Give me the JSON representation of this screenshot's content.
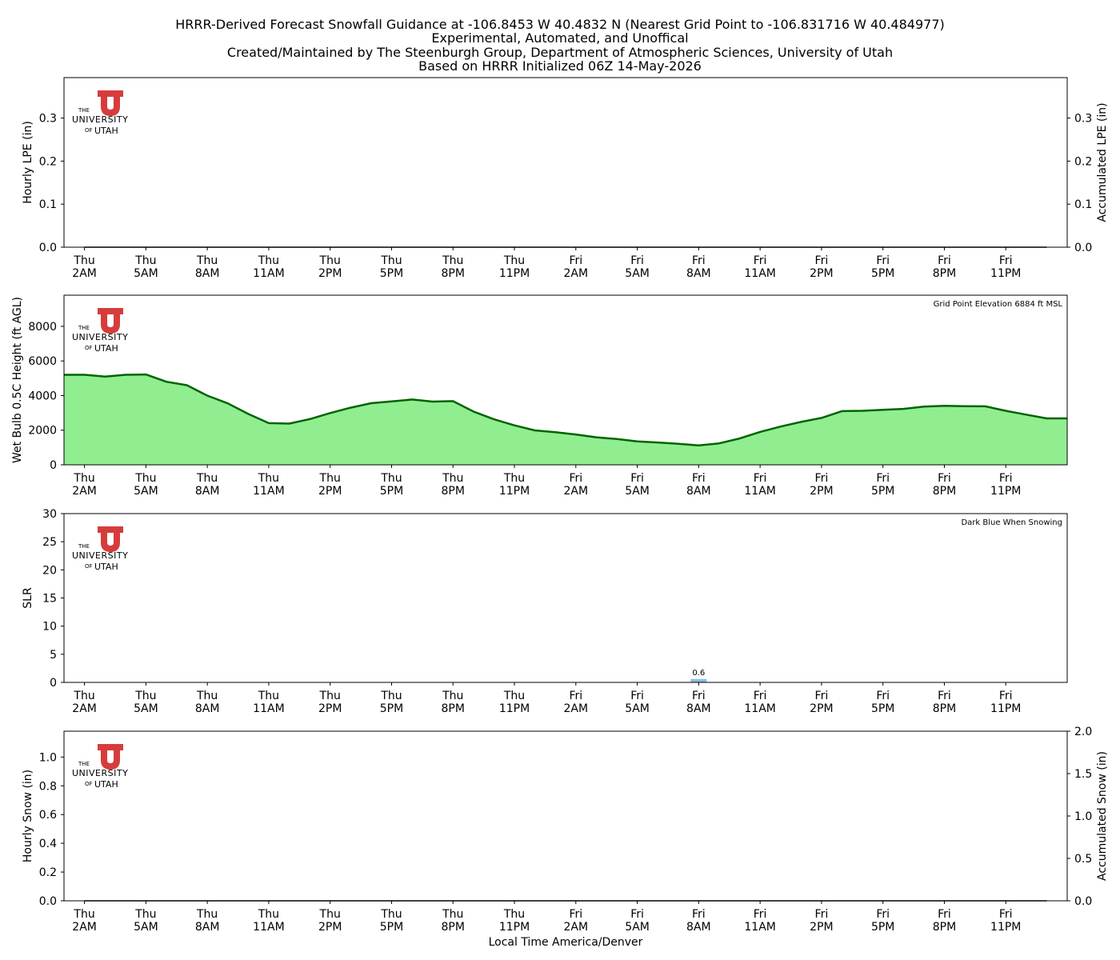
{
  "title_lines": [
    "HRRR-Derived Forecast Snowfall Guidance at -106.8453 W 40.4832 N (Nearest Grid Point to -106.831716 W 40.484977)",
    "Experimental, Automated, and Unoffical",
    "Created/Maintained by The Steenburgh Group, Department of Atmospheric Sciences, University of Utah",
    "Based on HRRR Initialized 06Z 14-May-2026"
  ],
  "x_axis": {
    "xlabel": "Local Time America/Denver",
    "tick_labels": [
      [
        "Thu",
        "2AM"
      ],
      [
        "Thu",
        "5AM"
      ],
      [
        "Thu",
        "8AM"
      ],
      [
        "Thu",
        "11AM"
      ],
      [
        "Thu",
        "2PM"
      ],
      [
        "Thu",
        "5PM"
      ],
      [
        "Thu",
        "8PM"
      ],
      [
        "Thu",
        "11PM"
      ],
      [
        "Fri",
        "2AM"
      ],
      [
        "Fri",
        "5AM"
      ],
      [
        "Fri",
        "8AM"
      ],
      [
        "Fri",
        "11AM"
      ],
      [
        "Fri",
        "2PM"
      ],
      [
        "Fri",
        "5PM"
      ],
      [
        "Fri",
        "8PM"
      ],
      [
        "Fri",
        "11PM"
      ]
    ]
  },
  "logo": {
    "the": "THE",
    "university": "UNIVERSITY",
    "of": "OF",
    "utah": "UTAH",
    "color": "#d63c3c"
  },
  "colors": {
    "fill_green": "#90ee90",
    "line_green": "#006400",
    "bar_blue": "#87bde0"
  },
  "chart_data": [
    {
      "type": "bar",
      "ylabel": "Hourly LPE (in)",
      "ylabel_right": "Accumulated LPE (in)",
      "ylim": [
        0,
        0.394
      ],
      "yticks": [
        0.0,
        0.1,
        0.2,
        0.3
      ],
      "ylim_right": [
        0,
        0.394
      ],
      "yticks_right": [
        0.0,
        0.1,
        0.2,
        0.3
      ],
      "x": [
        1,
        2,
        3,
        4,
        5,
        6,
        7,
        8,
        9,
        10,
        11,
        12,
        13,
        14,
        15,
        16,
        17,
        18,
        19,
        20,
        21,
        22,
        23,
        24,
        25,
        26,
        27,
        28,
        29,
        30,
        31,
        32,
        33,
        34,
        35,
        36,
        37,
        38,
        39,
        40,
        41,
        42,
        43,
        44,
        45,
        46,
        47,
        48
      ],
      "hourly": [
        0,
        0,
        0,
        0,
        0,
        0,
        0,
        0,
        0,
        0,
        0,
        0,
        0,
        0,
        0,
        0,
        0,
        0,
        0,
        0,
        0,
        0,
        0,
        0,
        0,
        0,
        0,
        0,
        0,
        0,
        0,
        0,
        0,
        0,
        0,
        0,
        0,
        0,
        0,
        0,
        0,
        0,
        0,
        0,
        0,
        0,
        0,
        0
      ],
      "accumulated": [
        0,
        0,
        0,
        0,
        0,
        0,
        0,
        0,
        0,
        0,
        0,
        0,
        0,
        0,
        0,
        0,
        0,
        0,
        0,
        0,
        0,
        0,
        0,
        0,
        0,
        0,
        0,
        0,
        0,
        0,
        0,
        0,
        0,
        0,
        0,
        0,
        0,
        0,
        0,
        0,
        0,
        0,
        0,
        0,
        0,
        0,
        0,
        0
      ]
    },
    {
      "type": "area",
      "ylabel": "Wet Bulb 0.5C Height (ft AGL)",
      "annotation": "Grid Point Elevation 6884 ft MSL",
      "ylim": [
        0,
        9800
      ],
      "yticks": [
        0,
        2000,
        4000,
        6000,
        8000
      ],
      "x": [
        1,
        2,
        3,
        4,
        5,
        6,
        7,
        8,
        9,
        10,
        11,
        12,
        13,
        14,
        15,
        16,
        17,
        18,
        19,
        20,
        21,
        22,
        23,
        24,
        25,
        26,
        27,
        28,
        29,
        30,
        31,
        32,
        33,
        34,
        35,
        36,
        37,
        38,
        39,
        40,
        41,
        42,
        43,
        44,
        45,
        46,
        47,
        48
      ],
      "values": [
        5200,
        5100,
        5200,
        5220,
        4800,
        4600,
        4000,
        3550,
        2940,
        2410,
        2380,
        2640,
        2990,
        3300,
        3560,
        3660,
        3770,
        3650,
        3680,
        3080,
        2630,
        2280,
        1990,
        1880,
        1750,
        1590,
        1490,
        1350,
        1290,
        1210,
        1120,
        1240,
        1520,
        1900,
        2210,
        2480,
        2710,
        3100,
        3120,
        3180,
        3230,
        3360,
        3410,
        3390,
        3380,
        3120,
        2900,
        2680
      ]
    },
    {
      "type": "bar",
      "ylabel": "SLR",
      "annotation": "Dark Blue When Snowing",
      "ylim": [
        0,
        30
      ],
      "yticks": [
        0,
        5,
        10,
        15,
        20,
        25,
        30
      ],
      "x": [
        31
      ],
      "values": [
        0.6
      ],
      "data_labels": [
        "0.6"
      ]
    },
    {
      "type": "bar",
      "ylabel": "Hourly Snow (in)",
      "ylabel_right": "Accumulated Snow (in)",
      "ylim": [
        0,
        1.18
      ],
      "yticks": [
        0.0,
        0.2,
        0.4,
        0.6,
        0.8,
        1.0
      ],
      "ylim_right": [
        0,
        2.0
      ],
      "yticks_right": [
        0.0,
        0.5,
        1.0,
        1.5,
        2.0
      ],
      "x": [
        1,
        2,
        3,
        4,
        5,
        6,
        7,
        8,
        9,
        10,
        11,
        12,
        13,
        14,
        15,
        16,
        17,
        18,
        19,
        20,
        21,
        22,
        23,
        24,
        25,
        26,
        27,
        28,
        29,
        30,
        31,
        32,
        33,
        34,
        35,
        36,
        37,
        38,
        39,
        40,
        41,
        42,
        43,
        44,
        45,
        46,
        47,
        48
      ],
      "hourly": [
        0,
        0,
        0,
        0,
        0,
        0,
        0,
        0,
        0,
        0,
        0,
        0,
        0,
        0,
        0,
        0,
        0,
        0,
        0,
        0,
        0,
        0,
        0,
        0,
        0,
        0,
        0,
        0,
        0,
        0,
        0,
        0,
        0,
        0,
        0,
        0,
        0,
        0,
        0,
        0,
        0,
        0,
        0,
        0,
        0,
        0,
        0,
        0
      ],
      "accumulated": [
        0,
        0,
        0,
        0,
        0,
        0,
        0,
        0,
        0,
        0,
        0,
        0,
        0,
        0,
        0,
        0,
        0,
        0,
        0,
        0,
        0,
        0,
        0,
        0,
        0,
        0,
        0,
        0,
        0,
        0,
        0,
        0,
        0,
        0,
        0,
        0,
        0,
        0,
        0,
        0,
        0,
        0,
        0,
        0,
        0,
        0,
        0,
        0
      ]
    }
  ]
}
